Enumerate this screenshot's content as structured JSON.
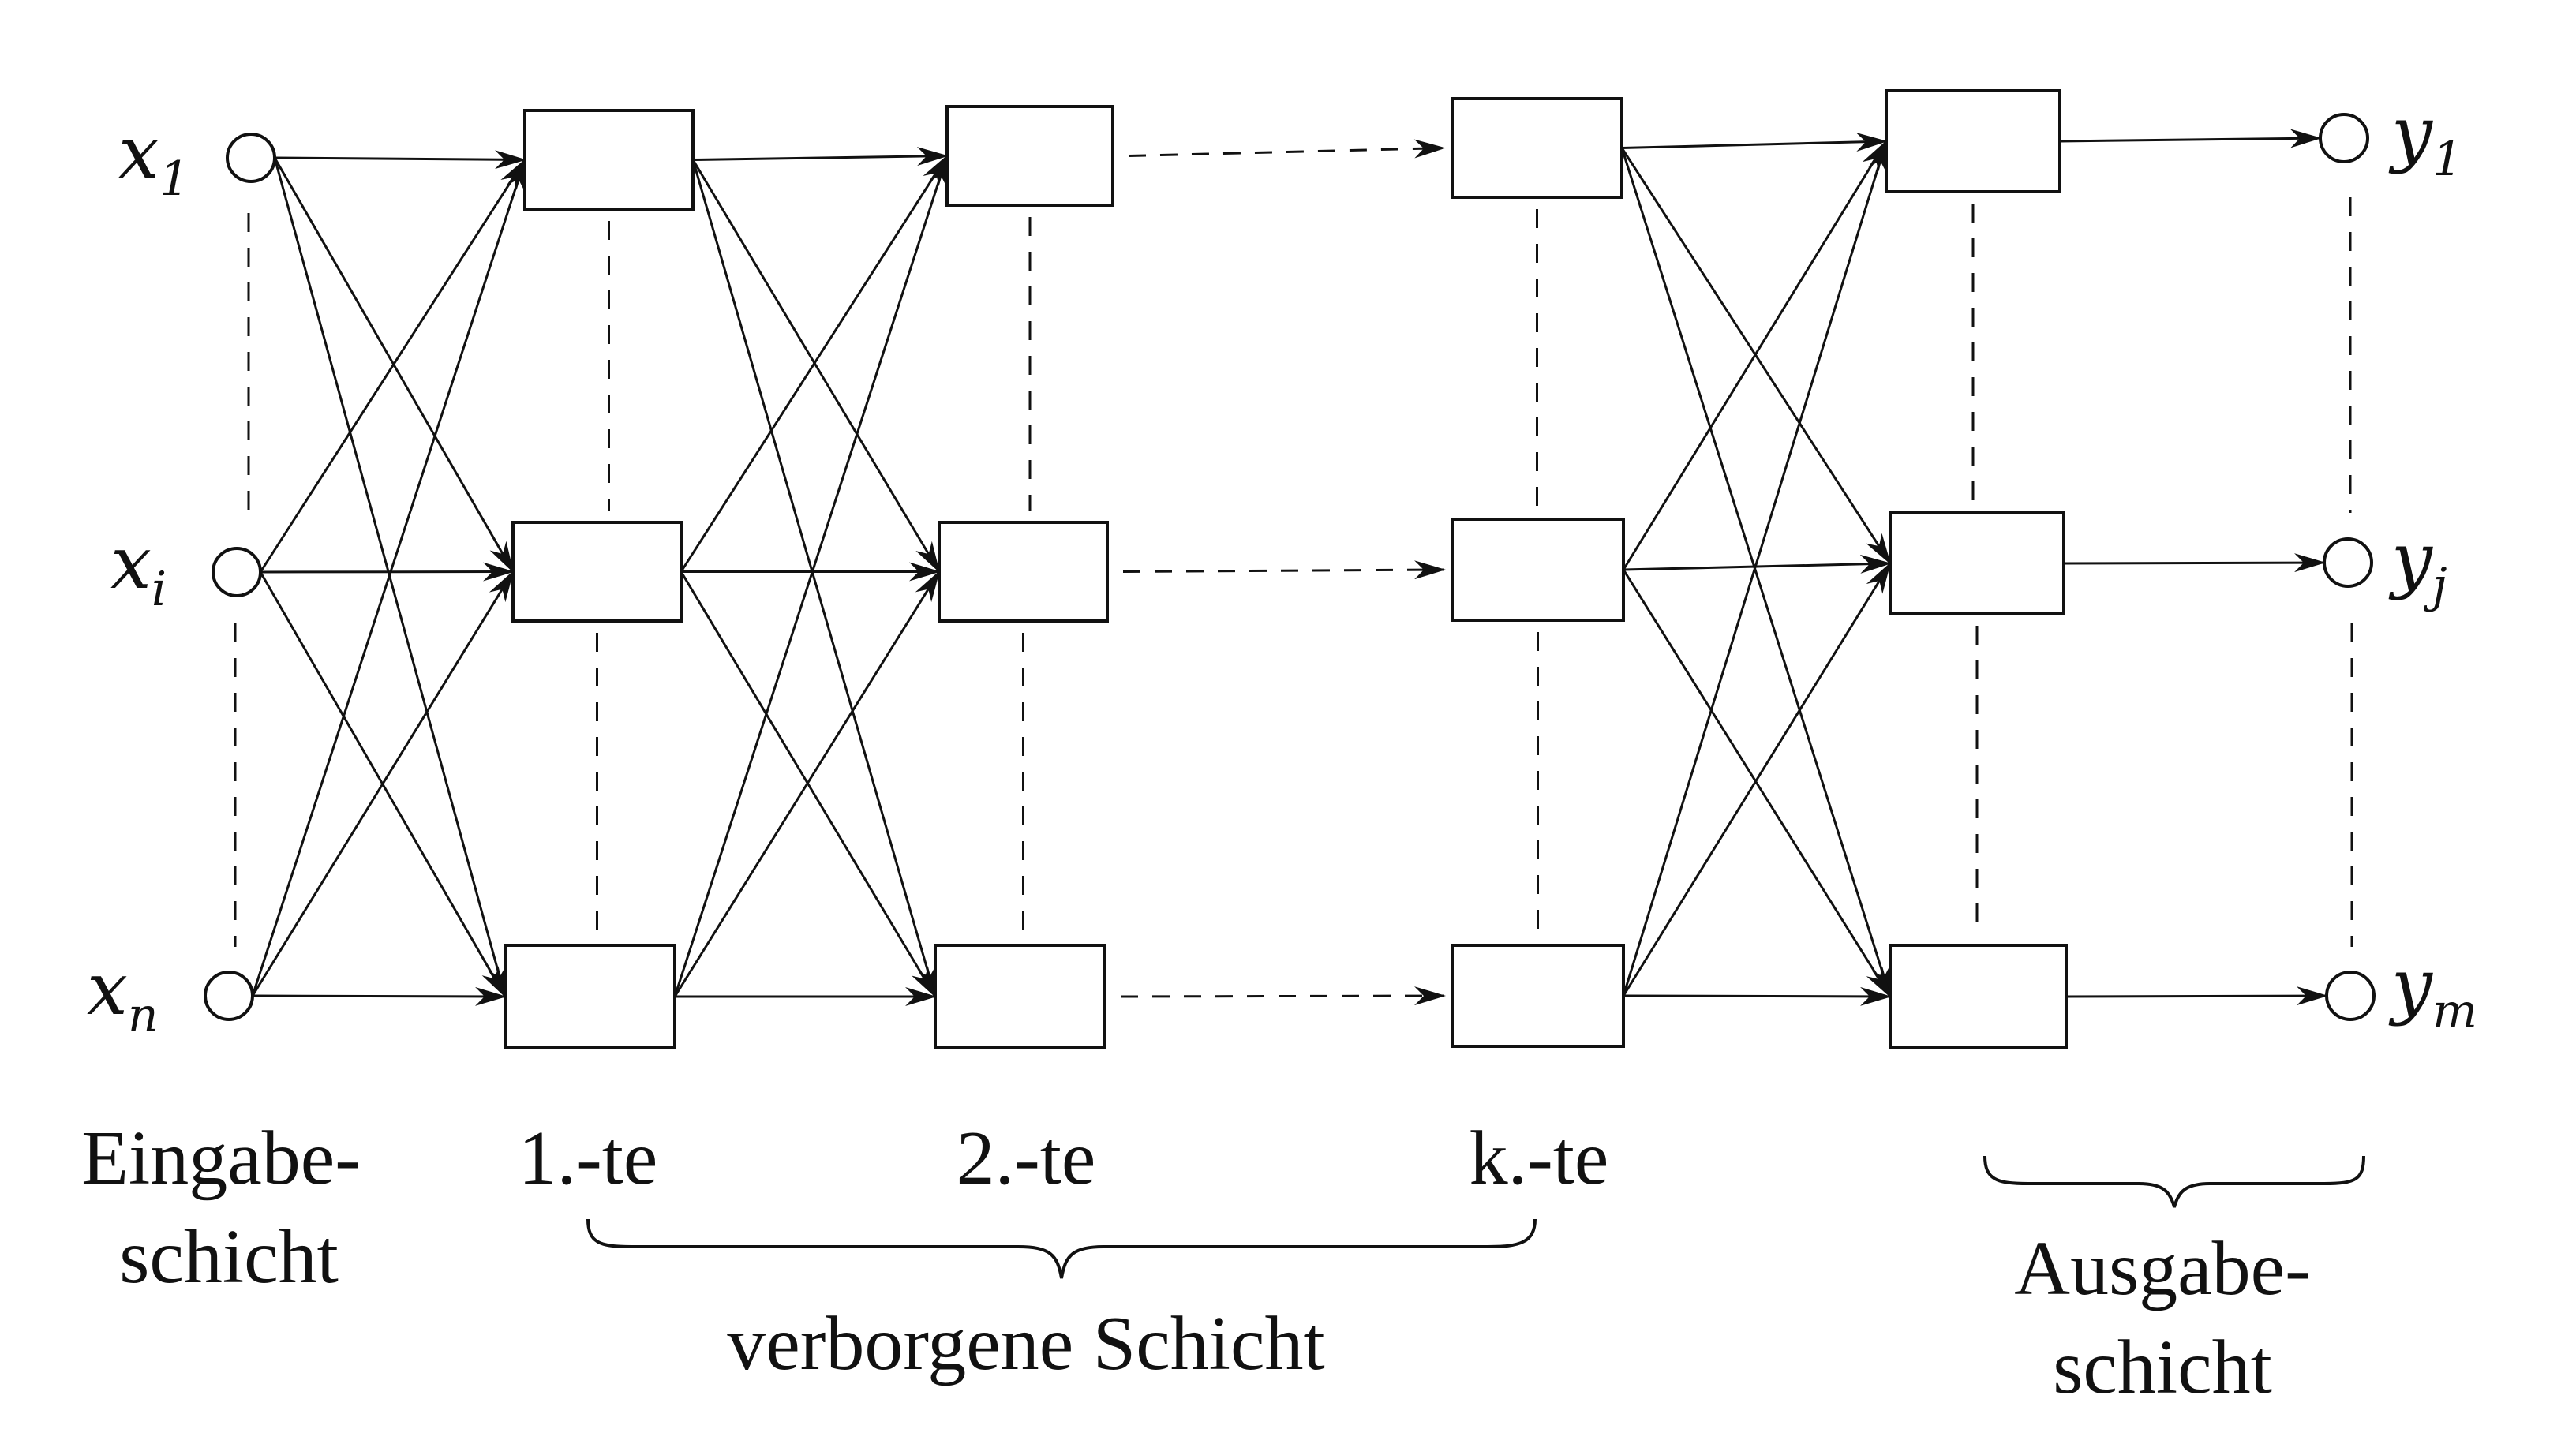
{
  "inputs": [
    {
      "base": "x",
      "sub": "1"
    },
    {
      "base": "x",
      "sub": "i"
    },
    {
      "base": "x",
      "sub": "n"
    }
  ],
  "outputs": [
    {
      "base": "y",
      "sub": "1"
    },
    {
      "base": "y",
      "sub": "j"
    },
    {
      "base": "y",
      "sub": "m"
    }
  ],
  "layer_labels": {
    "input_line1": "Eingabe-",
    "input_line2": "schicht",
    "hidden_1": "1.-te",
    "hidden_2": "2.-te",
    "hidden_k": "k.-te",
    "hidden_group": "verborgene Schicht",
    "output_line1": "Ausgabe-",
    "output_line2": "schicht"
  }
}
